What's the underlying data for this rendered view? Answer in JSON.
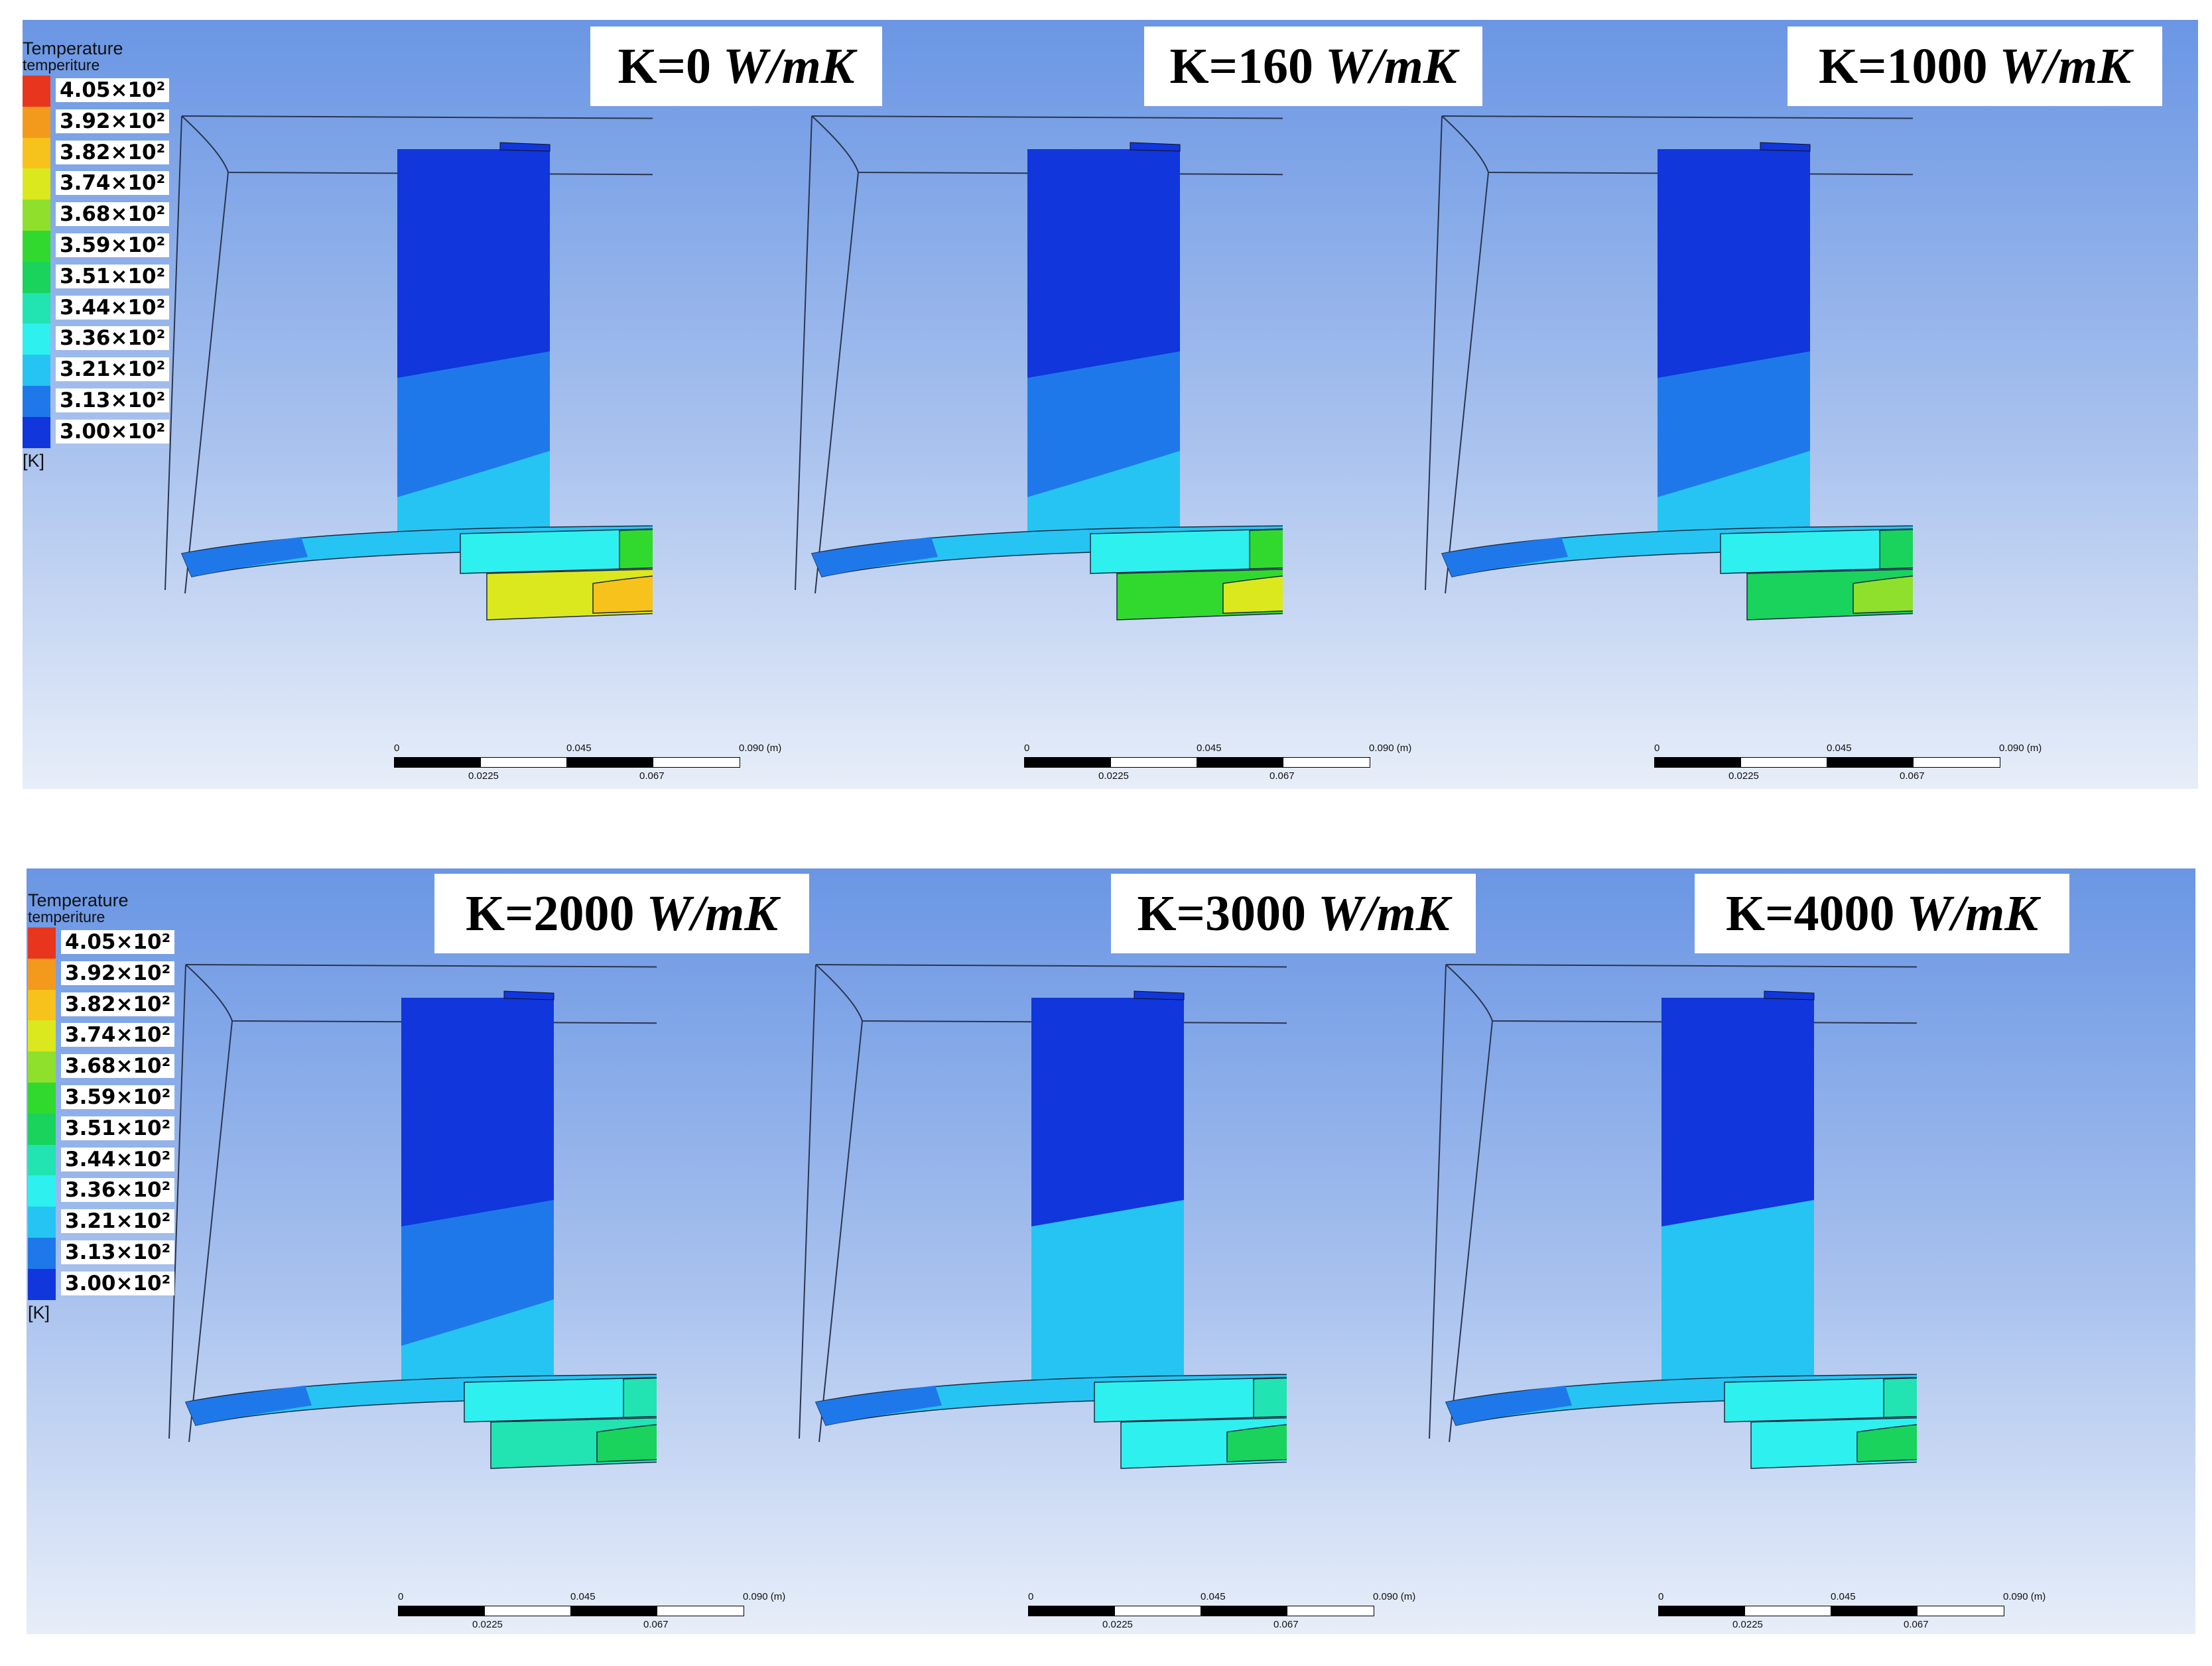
{
  "legend": {
    "title": "Temperature",
    "subtitle": "temperiture",
    "unit": "[K]",
    "entries": [
      {
        "label": "4.05×10²",
        "color": "#e8361e"
      },
      {
        "label": "3.92×10²",
        "color": "#f39a1c"
      },
      {
        "label": "3.82×10²",
        "color": "#f7c21b"
      },
      {
        "label": "3.74×10²",
        "color": "#dbe81e"
      },
      {
        "label": "3.68×10²",
        "color": "#8ee02c"
      },
      {
        "label": "3.59×10²",
        "color": "#31d92e"
      },
      {
        "label": "3.51×10²",
        "color": "#19d35c"
      },
      {
        "label": "3.44×10²",
        "color": "#22e3b2"
      },
      {
        "label": "3.36×10²",
        "color": "#2ef0ef"
      },
      {
        "label": "3.21×10²",
        "color": "#26c4f3"
      },
      {
        "label": "3.13×10²",
        "color": "#1f78ea"
      },
      {
        "label": "3.00×10²",
        "color": "#1036dc"
      }
    ]
  },
  "scale_bar": {
    "top_labels": [
      "0",
      "0.045",
      "0.090 (m)"
    ],
    "bottom_labels": [
      "0.0225",
      "0.067"
    ]
  },
  "panels": [
    {
      "label": "K=0",
      "unit": "W/mK",
      "legend": true,
      "colors": {
        "fin_top": "#1036dc",
        "fin_mid": "#1f78ea",
        "fin_low": "#26c4f3",
        "base": "#26c4f3",
        "box_left": "#2ef0ef",
        "box_right": "#31d92e",
        "low_box": "#dbe81e",
        "low_mid": "#f7c21b",
        "hot": "#e8361e"
      }
    },
    {
      "label": "K=160",
      "unit": "W/mK",
      "legend": false,
      "colors": {
        "fin_top": "#1036dc",
        "fin_mid": "#1f78ea",
        "fin_low": "#26c4f3",
        "base": "#26c4f3",
        "box_left": "#2ef0ef",
        "box_right": "#31d92e",
        "low_box": "#31d92e",
        "low_mid": "#dbe81e",
        "hot": "#f39a1c"
      }
    },
    {
      "label": "K=1000",
      "unit": "W/mK",
      "legend": false,
      "colors": {
        "fin_top": "#1036dc",
        "fin_mid": "#1f78ea",
        "fin_low": "#26c4f3",
        "base": "#26c4f3",
        "box_left": "#2ef0ef",
        "box_right": "#19d35c",
        "low_box": "#19d35c",
        "low_mid": "#8ee02c",
        "hot": "#f7c21b"
      }
    },
    {
      "label": "K=2000",
      "unit": "W/mK",
      "legend": true,
      "colors": {
        "fin_top": "#1036dc",
        "fin_mid": "#1f78ea",
        "fin_low": "#26c4f3",
        "base": "#26c4f3",
        "box_left": "#2ef0ef",
        "box_right": "#22e3b2",
        "low_box": "#22e3b2",
        "low_mid": "#19d35c",
        "hot": "#dbe81e"
      }
    },
    {
      "label": "K=3000",
      "unit": "W/mK",
      "legend": false,
      "colors": {
        "fin_top": "#1036dc",
        "fin_mid": "#26c4f3",
        "fin_low": "#26c4f3",
        "base": "#26c4f3",
        "box_left": "#2ef0ef",
        "box_right": "#22e3b2",
        "low_box": "#2ef0ef",
        "low_mid": "#19d35c",
        "hot": "#dbe81e"
      }
    },
    {
      "label": "K=4000",
      "unit": "W/mK",
      "legend": false,
      "colors": {
        "fin_top": "#1036dc",
        "fin_mid": "#26c4f3",
        "fin_low": "#26c4f3",
        "base": "#26c4f3",
        "box_left": "#2ef0ef",
        "box_right": "#22e3b2",
        "low_box": "#2ef0ef",
        "low_mid": "#19d35c",
        "hot": "#dbe81e"
      }
    }
  ]
}
